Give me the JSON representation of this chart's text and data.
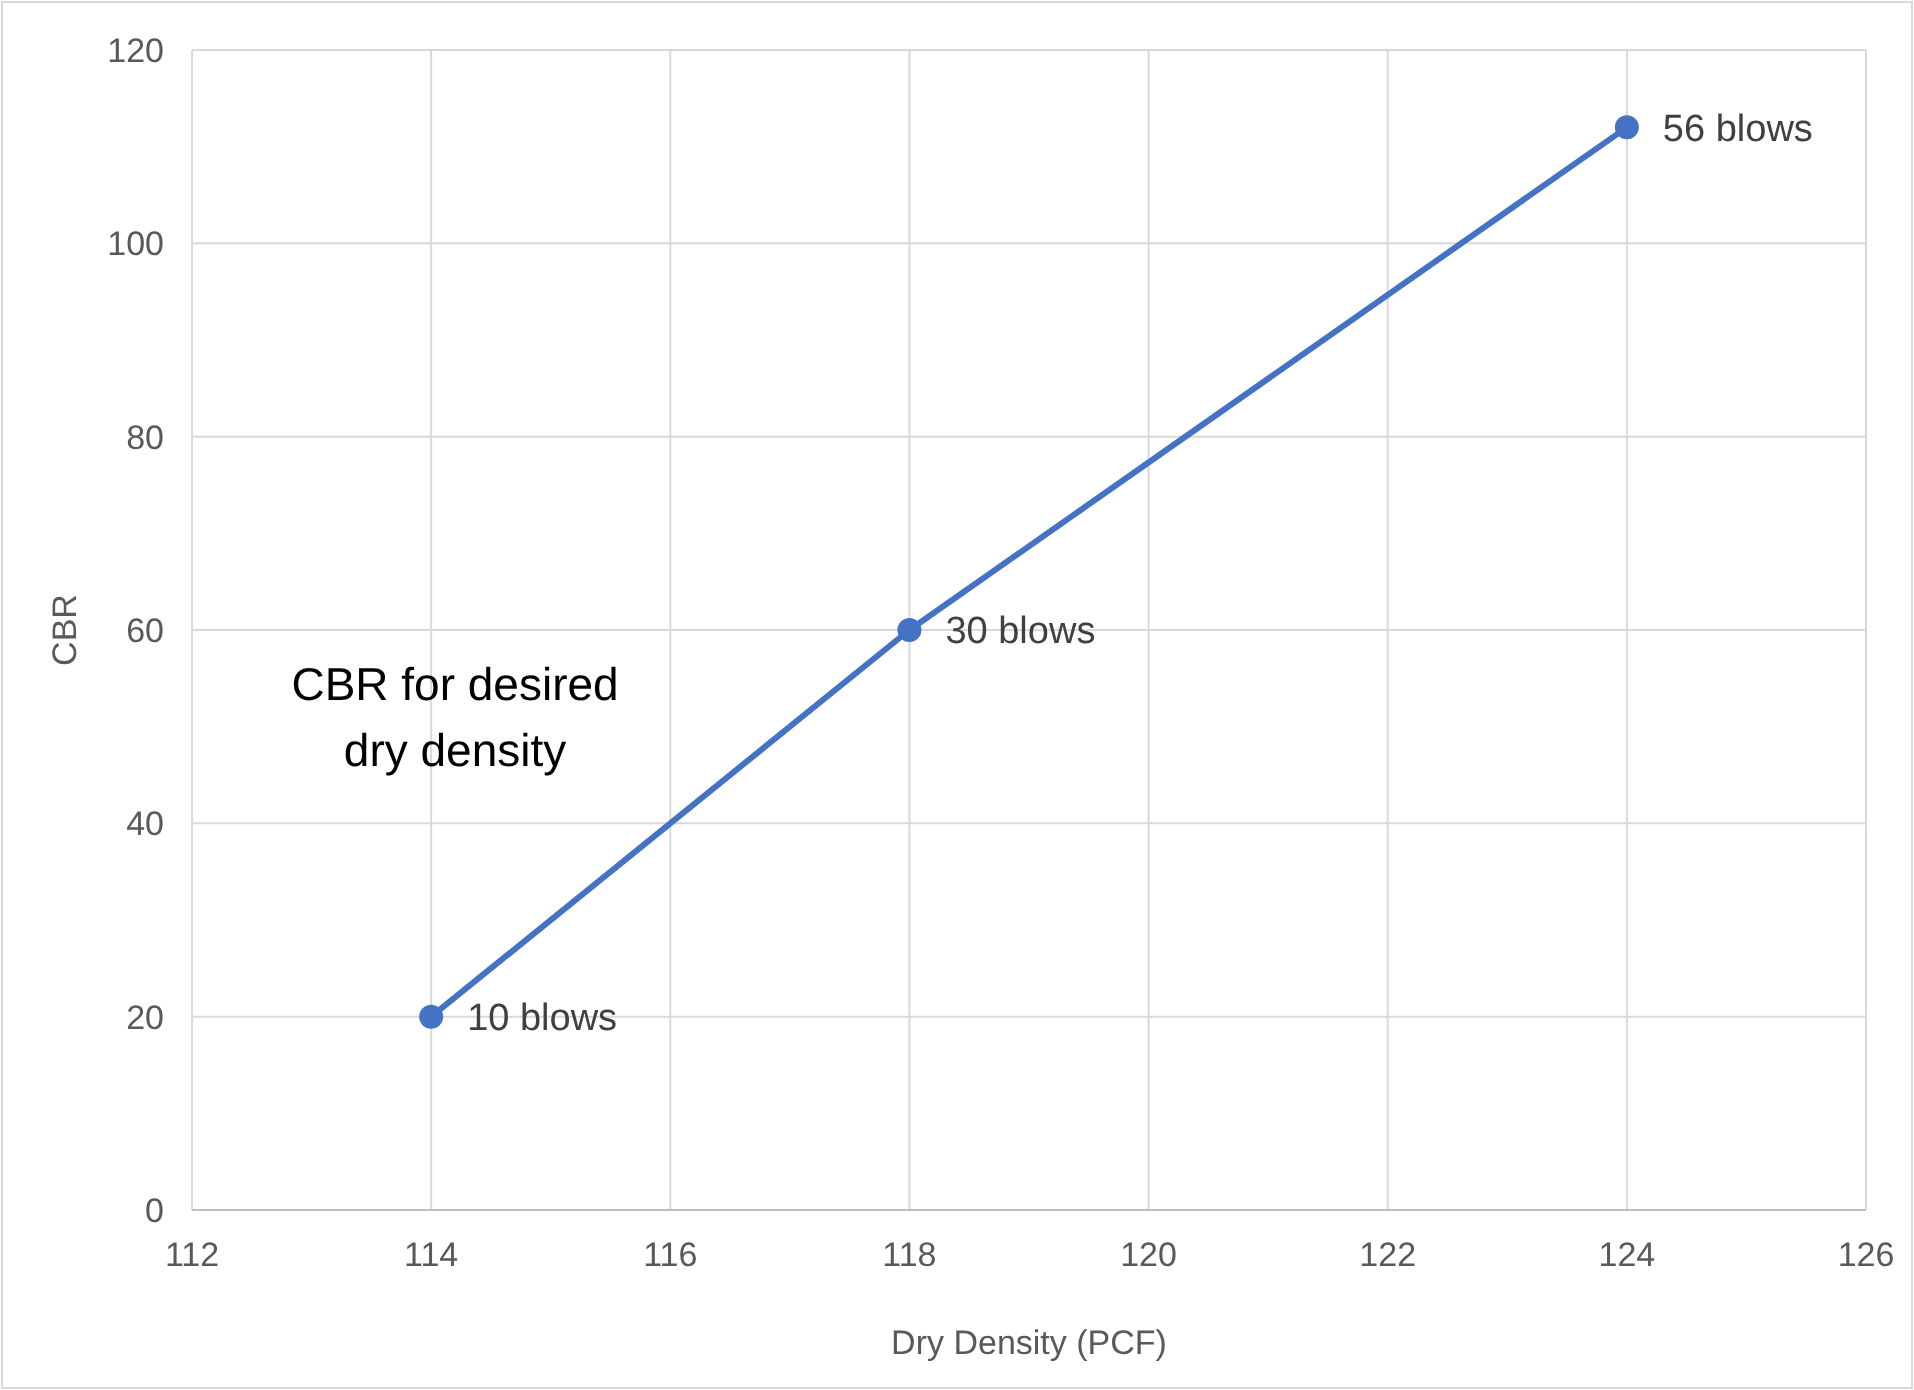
{
  "chart_data": {
    "type": "line",
    "xlabel": "Dry Density (PCF)",
    "ylabel": "CBR",
    "x": [
      114,
      118,
      124
    ],
    "series": [
      {
        "color": "#4472c4",
        "values": [
          20,
          60,
          112
        ]
      }
    ],
    "xlim": [
      112,
      126
    ],
    "xticks": [
      112,
      114,
      116,
      118,
      120,
      122,
      124,
      126
    ],
    "ylim": [
      0,
      120
    ],
    "yticks": [
      0,
      20,
      40,
      60,
      80,
      100,
      120
    ],
    "grid": true,
    "marker": "circle",
    "line_style": "solid",
    "annotations": [
      {
        "text": "10 blows",
        "x": 114,
        "y": 20
      },
      {
        "text": "30 blows",
        "x": 118,
        "y": 60
      },
      {
        "text": "56 blows",
        "x": 124,
        "y": 112
      },
      "CBR for desired dry density"
    ]
  }
}
